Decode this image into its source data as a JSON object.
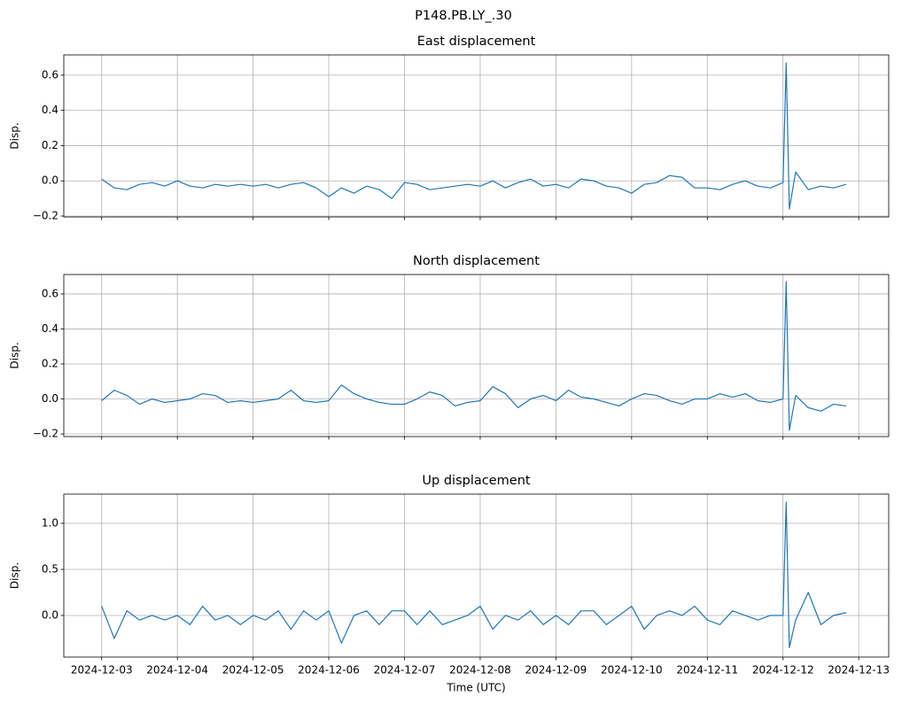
{
  "title": "P148.PB.LY_.30",
  "chart_data": [
    {
      "type": "line",
      "title": "East displacement",
      "ylabel": "Disp.",
      "grid": true,
      "color": "#1f77b4",
      "x": [
        "2024-12-03T00:00",
        "2024-12-03T04:00",
        "2024-12-03T08:00",
        "2024-12-03T12:00",
        "2024-12-03T16:00",
        "2024-12-03T20:00",
        "2024-12-04T00:00",
        "2024-12-04T04:00",
        "2024-12-04T08:00",
        "2024-12-04T12:00",
        "2024-12-04T16:00",
        "2024-12-04T20:00",
        "2024-12-05T00:00",
        "2024-12-05T04:00",
        "2024-12-05T08:00",
        "2024-12-05T12:00",
        "2024-12-05T16:00",
        "2024-12-05T20:00",
        "2024-12-06T00:00",
        "2024-12-06T04:00",
        "2024-12-06T08:00",
        "2024-12-06T12:00",
        "2024-12-06T16:00",
        "2024-12-06T20:00",
        "2024-12-07T00:00",
        "2024-12-07T04:00",
        "2024-12-07T08:00",
        "2024-12-07T12:00",
        "2024-12-07T16:00",
        "2024-12-07T20:00",
        "2024-12-08T00:00",
        "2024-12-08T04:00",
        "2024-12-08T08:00",
        "2024-12-08T12:00",
        "2024-12-08T16:00",
        "2024-12-08T20:00",
        "2024-12-09T00:00",
        "2024-12-09T04:00",
        "2024-12-09T08:00",
        "2024-12-09T12:00",
        "2024-12-09T16:00",
        "2024-12-09T20:00",
        "2024-12-10T00:00",
        "2024-12-10T04:00",
        "2024-12-10T08:00",
        "2024-12-10T12:00",
        "2024-12-10T16:00",
        "2024-12-10T20:00",
        "2024-12-11T00:00",
        "2024-12-11T04:00",
        "2024-12-11T08:00",
        "2024-12-11T12:00",
        "2024-12-11T16:00",
        "2024-12-11T20:00",
        "2024-12-12T00:00",
        "2024-12-12T01:00",
        "2024-12-12T02:00",
        "2024-12-12T04:00",
        "2024-12-12T08:00",
        "2024-12-12T12:00",
        "2024-12-12T16:00",
        "2024-12-12T20:00"
      ],
      "values": [
        0.01,
        -0.04,
        -0.05,
        -0.02,
        -0.01,
        -0.03,
        0.0,
        -0.03,
        -0.04,
        -0.02,
        -0.03,
        -0.02,
        -0.03,
        -0.02,
        -0.04,
        -0.02,
        -0.01,
        -0.04,
        -0.09,
        -0.04,
        -0.07,
        -0.03,
        -0.05,
        -0.1,
        -0.01,
        -0.02,
        -0.05,
        -0.04,
        -0.03,
        -0.02,
        -0.03,
        0.0,
        -0.04,
        -0.01,
        0.01,
        -0.03,
        -0.02,
        -0.04,
        0.01,
        0.0,
        -0.03,
        -0.04,
        -0.07,
        -0.02,
        -0.01,
        0.03,
        0.02,
        -0.04,
        -0.04,
        -0.05,
        -0.02,
        0.0,
        -0.03,
        -0.04,
        -0.01,
        0.67,
        -0.16,
        0.05,
        -0.05,
        -0.03,
        -0.04,
        -0.02
      ],
      "ylim": [
        -0.205,
        0.715
      ],
      "yticks": [
        {
          "value": -0.2,
          "label": "−0.2"
        },
        {
          "value": 0,
          "label": "0.0"
        },
        0.2,
        0.4,
        0.6
      ],
      "xlim": [
        "2024-12-02T12:00",
        "2024-12-13T09:30"
      ],
      "xticks": [
        "2024-12-03",
        "2024-12-04",
        "2024-12-05",
        "2024-12-06",
        "2024-12-07",
        "2024-12-08",
        "2024-12-09",
        "2024-12-10",
        "2024-12-11",
        "2024-12-12",
        "2024-12-13"
      ]
    },
    {
      "type": "line",
      "title": "North displacement",
      "ylabel": "Disp.",
      "grid": true,
      "color": "#1f77b4",
      "x": [
        "2024-12-03T00:00",
        "2024-12-03T04:00",
        "2024-12-03T08:00",
        "2024-12-03T12:00",
        "2024-12-03T16:00",
        "2024-12-03T20:00",
        "2024-12-04T00:00",
        "2024-12-04T04:00",
        "2024-12-04T08:00",
        "2024-12-04T12:00",
        "2024-12-04T16:00",
        "2024-12-04T20:00",
        "2024-12-05T00:00",
        "2024-12-05T04:00",
        "2024-12-05T08:00",
        "2024-12-05T12:00",
        "2024-12-05T16:00",
        "2024-12-05T20:00",
        "2024-12-06T00:00",
        "2024-12-06T04:00",
        "2024-12-06T08:00",
        "2024-12-06T12:00",
        "2024-12-06T16:00",
        "2024-12-06T20:00",
        "2024-12-07T00:00",
        "2024-12-07T04:00",
        "2024-12-07T08:00",
        "2024-12-07T12:00",
        "2024-12-07T16:00",
        "2024-12-07T20:00",
        "2024-12-08T00:00",
        "2024-12-08T04:00",
        "2024-12-08T08:00",
        "2024-12-08T12:00",
        "2024-12-08T16:00",
        "2024-12-08T20:00",
        "2024-12-09T00:00",
        "2024-12-09T04:00",
        "2024-12-09T08:00",
        "2024-12-09T12:00",
        "2024-12-09T16:00",
        "2024-12-09T20:00",
        "2024-12-10T00:00",
        "2024-12-10T04:00",
        "2024-12-10T08:00",
        "2024-12-10T12:00",
        "2024-12-10T16:00",
        "2024-12-10T20:00",
        "2024-12-11T00:00",
        "2024-12-11T04:00",
        "2024-12-11T08:00",
        "2024-12-11T12:00",
        "2024-12-11T16:00",
        "2024-12-11T20:00",
        "2024-12-12T00:00",
        "2024-12-12T01:00",
        "2024-12-12T02:00",
        "2024-12-12T04:00",
        "2024-12-12T08:00",
        "2024-12-12T12:00",
        "2024-12-12T16:00",
        "2024-12-12T20:00"
      ],
      "values": [
        -0.01,
        0.05,
        0.02,
        -0.03,
        0.0,
        -0.02,
        -0.01,
        0.0,
        0.03,
        0.02,
        -0.02,
        -0.01,
        -0.02,
        -0.01,
        0.0,
        0.05,
        -0.01,
        -0.02,
        -0.01,
        0.08,
        0.03,
        0.0,
        -0.02,
        -0.03,
        -0.03,
        0.0,
        0.04,
        0.02,
        -0.04,
        -0.02,
        -0.01,
        0.07,
        0.03,
        -0.05,
        0.0,
        0.02,
        -0.01,
        0.05,
        0.01,
        0.0,
        -0.02,
        -0.04,
        0.0,
        0.03,
        0.02,
        -0.01,
        -0.03,
        0.0,
        0.0,
        0.03,
        0.01,
        0.03,
        -0.01,
        -0.02,
        0.0,
        0.67,
        -0.18,
        0.02,
        -0.05,
        -0.07,
        -0.03,
        -0.04
      ],
      "ylim": [
        -0.215,
        0.711
      ],
      "yticks": [
        {
          "value": -0.2,
          "label": "−0.2"
        },
        {
          "value": 0,
          "label": "0.0"
        },
        0.2,
        0.4,
        0.6
      ],
      "xlim": [
        "2024-12-02T12:00",
        "2024-12-13T09:30"
      ],
      "xticks": [
        "2024-12-03",
        "2024-12-04",
        "2024-12-05",
        "2024-12-06",
        "2024-12-07",
        "2024-12-08",
        "2024-12-09",
        "2024-12-10",
        "2024-12-11",
        "2024-12-12",
        "2024-12-13"
      ]
    },
    {
      "type": "line",
      "title": "Up displacement",
      "ylabel": "Disp.",
      "xlabel": "Time (UTC)",
      "show_xtick_labels": true,
      "grid": true,
      "color": "#1f77b4",
      "x": [
        "2024-12-03T00:00",
        "2024-12-03T04:00",
        "2024-12-03T08:00",
        "2024-12-03T12:00",
        "2024-12-03T16:00",
        "2024-12-03T20:00",
        "2024-12-04T00:00",
        "2024-12-04T04:00",
        "2024-12-04T08:00",
        "2024-12-04T12:00",
        "2024-12-04T16:00",
        "2024-12-04T20:00",
        "2024-12-05T00:00",
        "2024-12-05T04:00",
        "2024-12-05T08:00",
        "2024-12-05T12:00",
        "2024-12-05T16:00",
        "2024-12-05T20:00",
        "2024-12-06T00:00",
        "2024-12-06T04:00",
        "2024-12-06T08:00",
        "2024-12-06T12:00",
        "2024-12-06T16:00",
        "2024-12-06T20:00",
        "2024-12-07T00:00",
        "2024-12-07T04:00",
        "2024-12-07T08:00",
        "2024-12-07T12:00",
        "2024-12-07T16:00",
        "2024-12-07T20:00",
        "2024-12-08T00:00",
        "2024-12-08T04:00",
        "2024-12-08T08:00",
        "2024-12-08T12:00",
        "2024-12-08T16:00",
        "2024-12-08T20:00",
        "2024-12-09T00:00",
        "2024-12-09T04:00",
        "2024-12-09T08:00",
        "2024-12-09T12:00",
        "2024-12-09T16:00",
        "2024-12-09T20:00",
        "2024-12-10T00:00",
        "2024-12-10T04:00",
        "2024-12-10T08:00",
        "2024-12-10T12:00",
        "2024-12-10T16:00",
        "2024-12-10T20:00",
        "2024-12-11T00:00",
        "2024-12-11T04:00",
        "2024-12-11T08:00",
        "2024-12-11T12:00",
        "2024-12-11T16:00",
        "2024-12-11T20:00",
        "2024-12-12T00:00",
        "2024-12-12T01:00",
        "2024-12-12T02:00",
        "2024-12-12T04:00",
        "2024-12-12T08:00",
        "2024-12-12T12:00",
        "2024-12-12T16:00",
        "2024-12-12T20:00"
      ],
      "values": [
        0.1,
        -0.25,
        0.05,
        -0.05,
        0.0,
        -0.05,
        0.0,
        -0.1,
        0.1,
        -0.05,
        0.0,
        -0.1,
        0.0,
        -0.05,
        0.05,
        -0.15,
        0.05,
        -0.05,
        0.05,
        -0.3,
        0.0,
        0.05,
        -0.1,
        0.05,
        0.05,
        -0.1,
        0.05,
        -0.1,
        -0.05,
        0.0,
        0.1,
        -0.15,
        0.0,
        -0.05,
        0.05,
        -0.1,
        0.0,
        -0.1,
        0.05,
        0.05,
        -0.1,
        0.0,
        0.1,
        -0.15,
        0.0,
        0.05,
        0.0,
        0.1,
        -0.05,
        -0.1,
        0.05,
        0.0,
        -0.05,
        0.0,
        0.0,
        1.23,
        -0.35,
        -0.05,
        0.25,
        -0.1,
        0.0,
        0.03
      ],
      "ylim": [
        -0.452,
        1.317
      ],
      "yticks": [
        {
          "value": 0,
          "label": "0.0"
        },
        0.5,
        {
          "value": 1,
          "label": "1.0"
        }
      ],
      "xlim": [
        "2024-12-02T12:00",
        "2024-12-13T09:30"
      ],
      "xticks": [
        "2024-12-03",
        "2024-12-04",
        "2024-12-05",
        "2024-12-06",
        "2024-12-07",
        "2024-12-08",
        "2024-12-09",
        "2024-12-10",
        "2024-12-11",
        "2024-12-12",
        "2024-12-13"
      ]
    }
  ]
}
